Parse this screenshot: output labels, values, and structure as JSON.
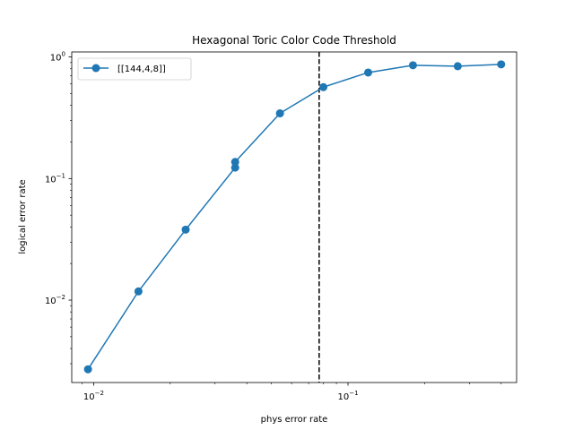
{
  "chart_data": {
    "type": "line",
    "title": "Hexagonal Toric Color Code Threshold",
    "xlabel": "phys error rate",
    "ylabel": "logical error rate",
    "xscale": "log",
    "yscale": "log",
    "xlim": [
      0.0082,
      0.46
    ],
    "ylim": [
      0.0021,
      1.1
    ],
    "x_ticks": [
      {
        "value": 0.01,
        "base": "10",
        "exp": "−2"
      },
      {
        "value": 0.1,
        "base": "10",
        "exp": "−1"
      }
    ],
    "y_ticks": [
      {
        "value": 0.01,
        "base": "10",
        "exp": "−2"
      },
      {
        "value": 0.1,
        "base": "10",
        "exp": "−1"
      },
      {
        "value": 1,
        "base": "10",
        "exp": "0"
      }
    ],
    "grid": false,
    "legend_position": "top-left",
    "threshold_x": 0.077,
    "series": [
      {
        "name": "[[144,4,8]]",
        "color": "#1f77b4",
        "x": [
          0.0095,
          0.015,
          0.023,
          0.036,
          0.036,
          0.054,
          0.08,
          0.12,
          0.18,
          0.27,
          0.4
        ],
        "y": [
          0.0027,
          0.0118,
          0.038,
          0.123,
          0.137,
          0.344,
          0.565,
          0.745,
          0.855,
          0.84,
          0.87
        ]
      }
    ]
  }
}
